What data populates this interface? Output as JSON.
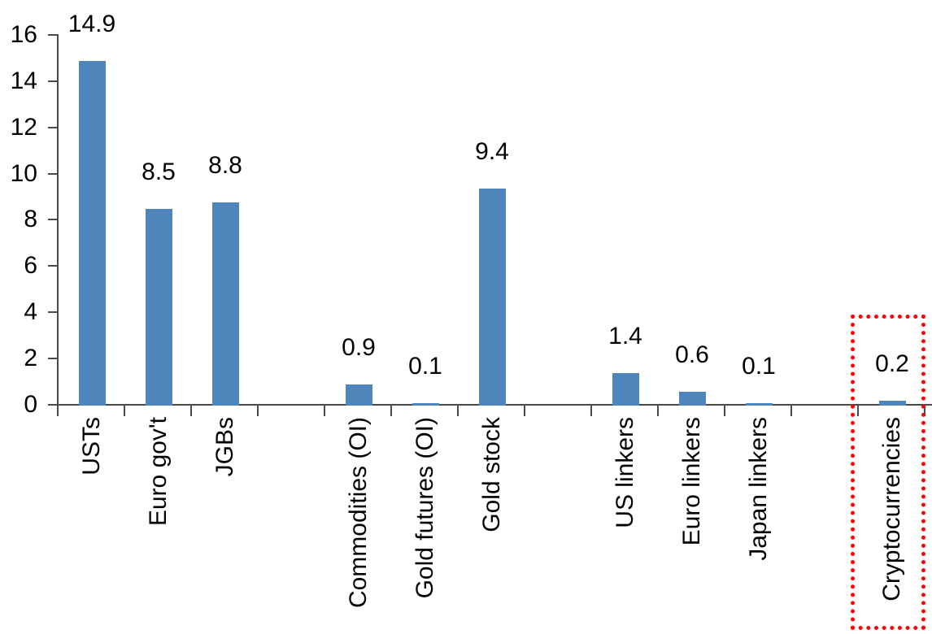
{
  "chart_data": {
    "type": "bar",
    "title": "",
    "xlabel": "",
    "ylabel": "",
    "ylim": [
      0,
      16
    ],
    "yticks": [
      0,
      2,
      4,
      6,
      8,
      10,
      12,
      14,
      16
    ],
    "grid": false,
    "legend": false,
    "bar_color": "#4E86BC",
    "axis_color": "#4A4A4A",
    "text_color": "#000000",
    "categories": [
      "USTs",
      "Euro gov't",
      "JGBs",
      "",
      "Commodities (OI)",
      "Gold futures (OI)",
      "Gold stock",
      "",
      "US linkers",
      "Euro linkers",
      "Japan linkers",
      "",
      "Cryptocurrencies"
    ],
    "values": [
      14.9,
      8.5,
      8.8,
      null,
      0.9,
      0.1,
      9.4,
      null,
      1.4,
      0.6,
      0.1,
      null,
      0.2
    ],
    "value_labels": [
      "14.9",
      "8.5",
      "8.8",
      "",
      "0.9",
      "0.1",
      "9.4",
      "",
      "1.4",
      "0.6",
      "0.1",
      "",
      "0.2"
    ],
    "highlight": {
      "category": "Cryptocurrencies",
      "slot_index": 12,
      "box_color": "#FF0000",
      "box_style": "dotted"
    }
  }
}
